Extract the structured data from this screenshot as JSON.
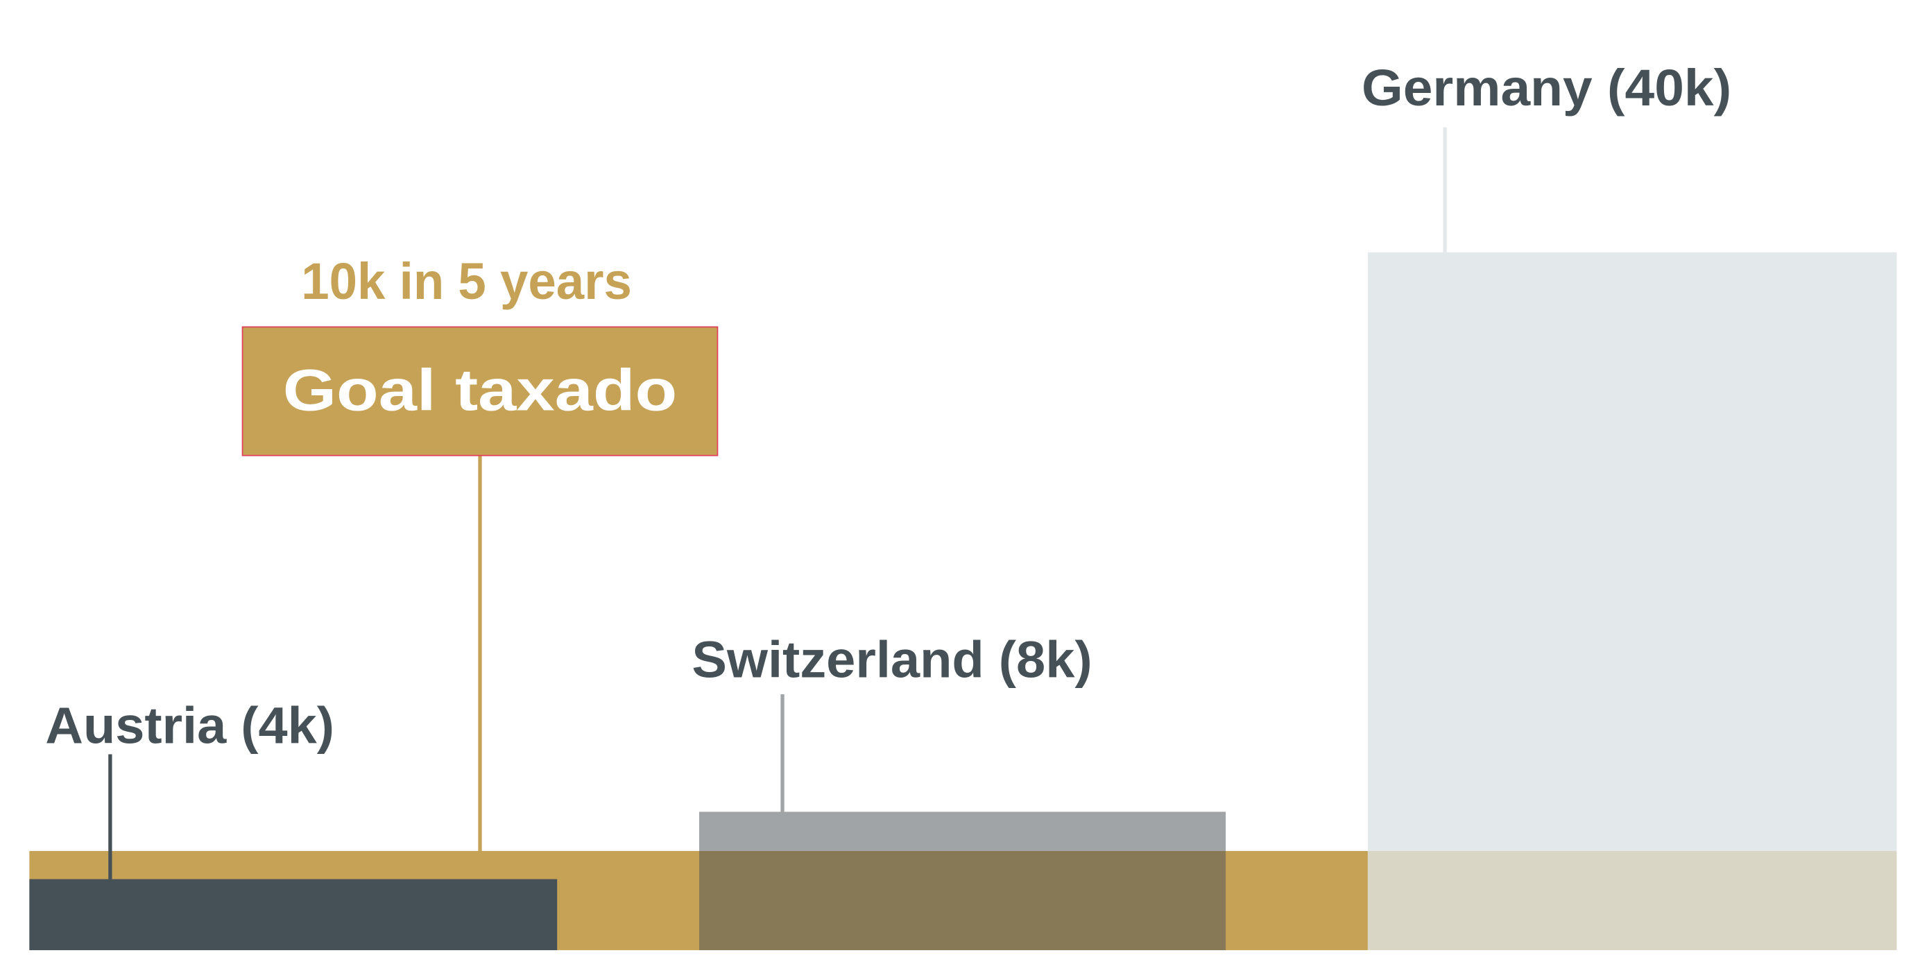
{
  "goal": {
    "title": "Goal taxado",
    "subtitle": "10k in 5 years"
  },
  "countries": [
    {
      "label": "Austria (4k)"
    },
    {
      "label": "Switzerland (8k)"
    },
    {
      "label": "Germany (40k)"
    }
  ]
}
